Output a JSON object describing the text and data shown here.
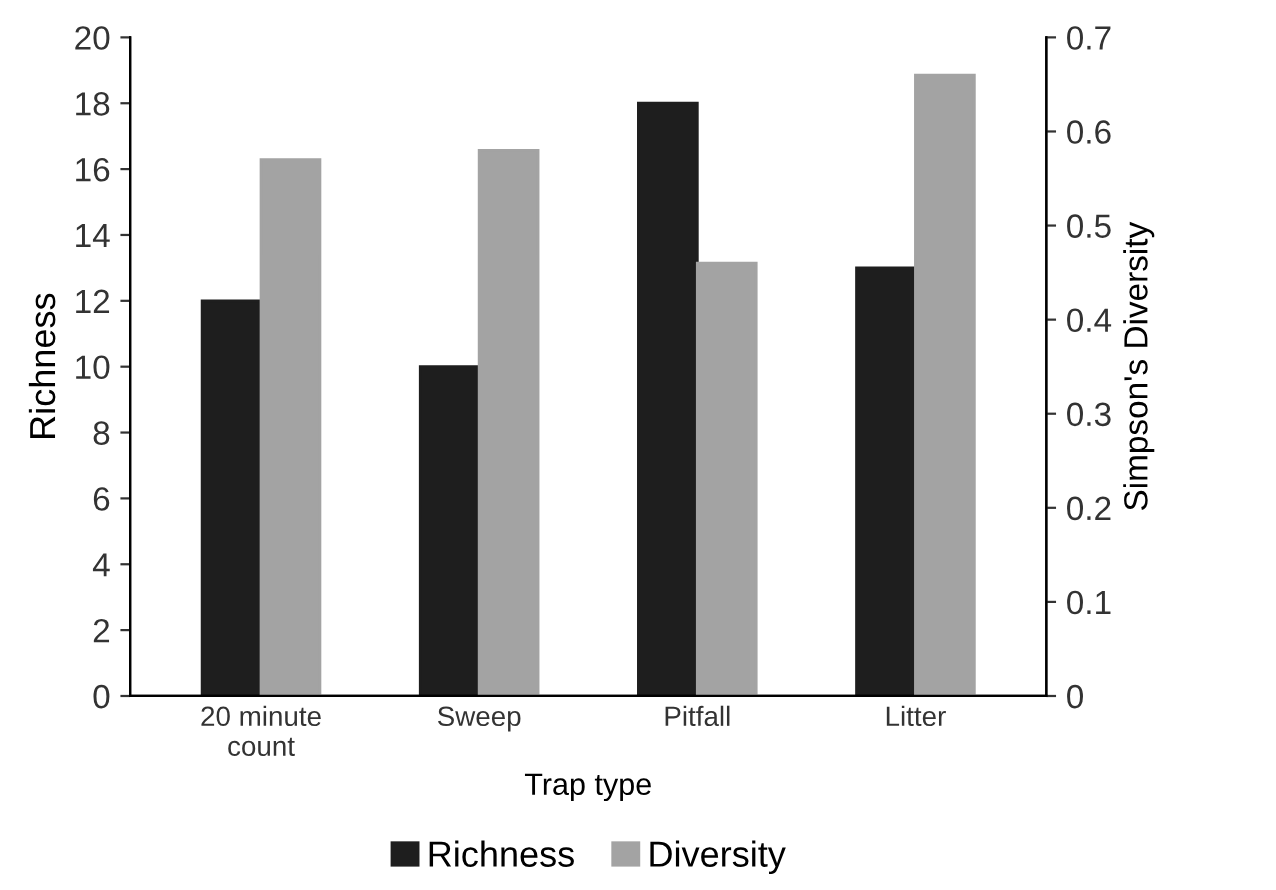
{
  "chart_data": {
    "type": "bar",
    "xlabel": "Trap type",
    "ylabel": "Richness",
    "y2label": "Simpson's Diversity",
    "categories": [
      "20 minute\ncount",
      "Sweep",
      "Pitfall",
      "Litter"
    ],
    "series": [
      {
        "name": "Richness",
        "color": "#1e1e1e",
        "values": [
          12,
          10,
          18,
          13
        ]
      },
      {
        "name": "Diversity",
        "color": "#a3a3a3",
        "values": [
          0.57,
          0.58,
          0.46,
          0.66
        ],
        "axis": "y2"
      }
    ],
    "ylim": [
      0,
      20
    ],
    "yticks": [
      0,
      2,
      4,
      6,
      8,
      10,
      12,
      14,
      16,
      18,
      20
    ],
    "y2lim": [
      0,
      0.7
    ],
    "y2ticks": [
      0,
      0.1,
      0.2,
      0.3,
      0.4,
      0.5,
      0.6,
      0.7
    ],
    "grid": false,
    "legend": "bottom"
  }
}
